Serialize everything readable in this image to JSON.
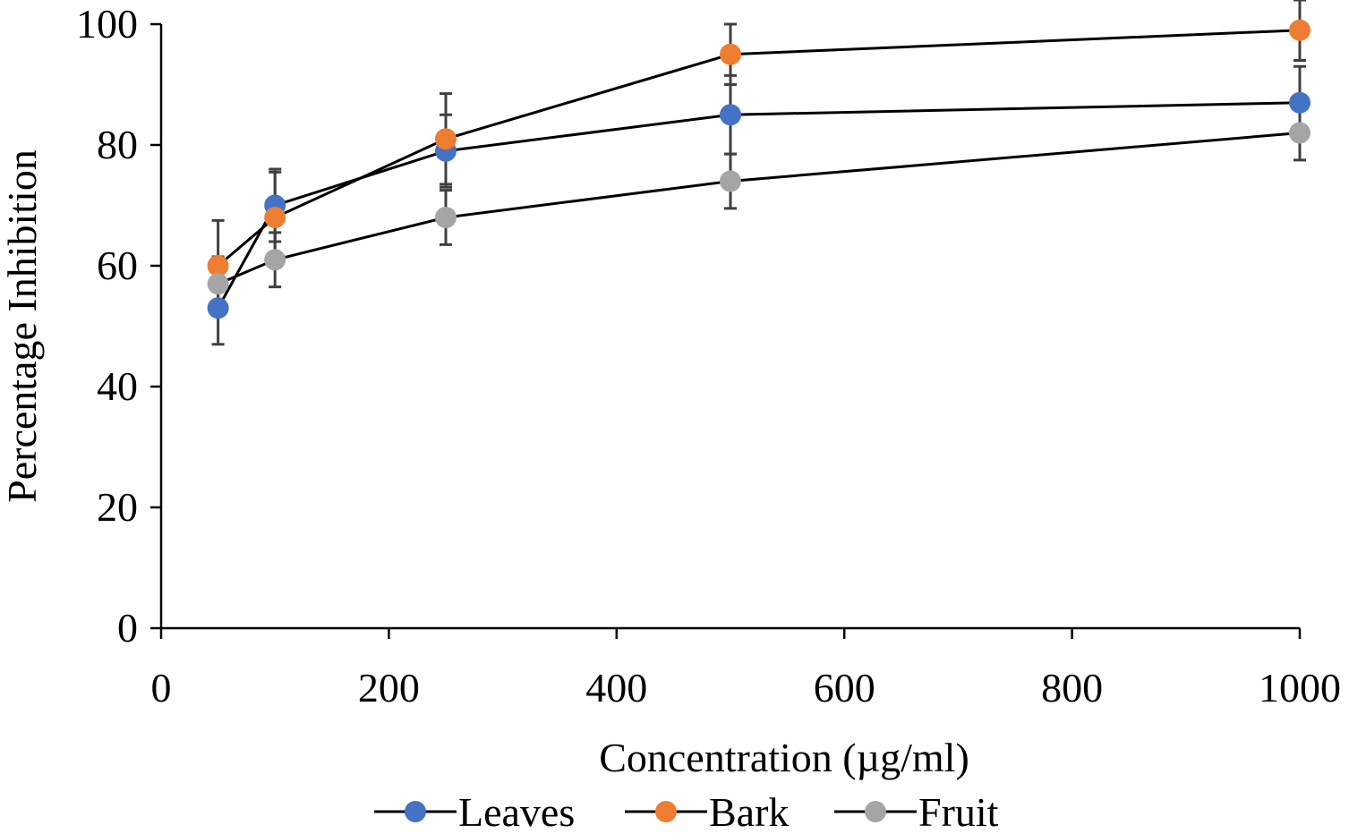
{
  "chart_data": {
    "type": "line",
    "title": "",
    "xlabel": "Concentration (µg/ml)",
    "ylabel": "Percentage Inhibition",
    "xlim": [
      0,
      1000
    ],
    "ylim": [
      0,
      100
    ],
    "xticks": [
      0,
      200,
      400,
      600,
      800,
      1000
    ],
    "yticks": [
      0,
      20,
      40,
      60,
      80,
      100
    ],
    "grid": false,
    "legend_position": "bottom",
    "line_color": "#000000",
    "errorbar_color": "#404040",
    "series": [
      {
        "name": "Leaves",
        "color": "#4472C4",
        "x": [
          50,
          100,
          250,
          500,
          1000
        ],
        "y": [
          53,
          70,
          79,
          85,
          87
        ],
        "err": [
          6,
          6,
          6,
          6.5,
          6
        ]
      },
      {
        "name": "Bark",
        "color": "#ED7D31",
        "x": [
          50,
          100,
          250,
          500,
          1000
        ],
        "y": [
          60,
          68,
          81,
          95,
          99
        ],
        "err": [
          7.5,
          7.5,
          7.5,
          5,
          5
        ]
      },
      {
        "name": "Fruit",
        "color": "#A5A5A5",
        "x": [
          50,
          100,
          250,
          500,
          1000
        ],
        "y": [
          57,
          61,
          68,
          74,
          82
        ],
        "err": [
          4.5,
          4.5,
          4.5,
          4.5,
          4.5
        ]
      }
    ]
  }
}
